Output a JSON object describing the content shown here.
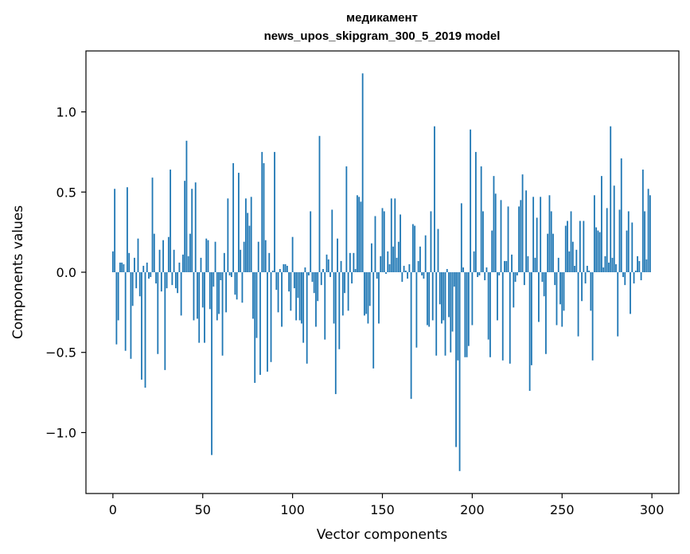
{
  "chart_data": {
    "type": "bar",
    "title_lines": [
      "медикамент",
      "news_upos_skipgram_300_5_2019 model"
    ],
    "xlabel": "Vector components",
    "ylabel": "Components values",
    "xlim": [
      -15,
      315
    ],
    "ylim": [
      -1.38,
      1.38
    ],
    "xticks": [
      0,
      50,
      100,
      150,
      200,
      250,
      300
    ],
    "yticks": [
      -1.0,
      -0.5,
      0.0,
      0.5,
      1.0
    ],
    "ytick_labels": [
      "−1.0",
      "−0.5",
      "0.0",
      "0.5",
      "1.0"
    ],
    "grid": false,
    "color": "#1f77b4",
    "values": [
      0.13,
      0.52,
      -0.45,
      -0.3,
      0.06,
      0.06,
      0.05,
      -0.49,
      0.53,
      0.12,
      -0.54,
      -0.21,
      0.09,
      -0.1,
      0.21,
      -0.15,
      -0.67,
      0.04,
      -0.72,
      0.06,
      -0.04,
      -0.03,
      0.59,
      0.24,
      -0.07,
      -0.51,
      0.14,
      -0.12,
      0.2,
      -0.61,
      -0.1,
      0.22,
      0.64,
      -0.08,
      0.14,
      -0.1,
      -0.13,
      0.06,
      -0.27,
      0.11,
      0.57,
      0.82,
      0.1,
      0.24,
      0.52,
      -0.3,
      0.56,
      -0.29,
      -0.44,
      0.09,
      -0.22,
      -0.44,
      0.21,
      0.2,
      -0.23,
      -1.14,
      -0.09,
      0.19,
      -0.3,
      -0.26,
      -0.05,
      -0.52,
      0.12,
      -0.25,
      0.46,
      -0.02,
      -0.03,
      0.68,
      -0.14,
      -0.17,
      0.62,
      0.14,
      -0.19,
      0.19,
      0.46,
      0.37,
      0.29,
      0.47,
      -0.29,
      -0.69,
      -0.41,
      0.19,
      -0.64,
      0.75,
      0.68,
      0.2,
      -0.62,
      0.12,
      -0.56,
      0.01,
      0.75,
      -0.11,
      -0.25,
      0.02,
      -0.34,
      0.05,
      0.05,
      0.04,
      -0.12,
      -0.24,
      0.22,
      -0.1,
      -0.3,
      -0.16,
      -0.3,
      -0.32,
      -0.44,
      0.03,
      -0.57,
      -0.02,
      0.38,
      -0.06,
      -0.13,
      -0.34,
      -0.18,
      0.85,
      -0.08,
      0.02,
      -0.42,
      0.11,
      0.08,
      -0.03,
      0.39,
      -0.32,
      -0.76,
      0.21,
      -0.48,
      0.07,
      -0.27,
      -0.13,
      0.66,
      -0.24,
      0.12,
      -0.07,
      0.12,
      0.02,
      0.48,
      0.47,
      0.44,
      1.24,
      -0.27,
      -0.26,
      -0.32,
      -0.21,
      0.18,
      -0.6,
      0.35,
      -0.04,
      -0.32,
      0.1,
      0.4,
      0.38,
      -0.01,
      0.13,
      0.05,
      0.46,
      0.16,
      0.46,
      0.09,
      0.19,
      0.36,
      -0.06,
      0.04,
      0.01,
      -0.04,
      0.05,
      -0.79,
      0.3,
      0.29,
      -0.47,
      0.07,
      0.16,
      -0.02,
      -0.04,
      0.23,
      -0.33,
      -0.34,
      0.38,
      -0.3,
      0.91,
      -0.52,
      0.27,
      -0.2,
      -0.32,
      -0.3,
      -0.52,
      0.02,
      -0.28,
      -0.5,
      -0.37,
      -0.09,
      -1.09,
      -0.55,
      -1.24,
      0.43,
      0.03,
      -0.53,
      -0.53,
      -0.46,
      0.89,
      -0.33,
      0.13,
      0.75,
      -0.03,
      -0.02,
      0.66,
      0.38,
      -0.05,
      0.03,
      -0.42,
      -0.53,
      0.26,
      0.6,
      0.49,
      -0.3,
      -0.02,
      0.45,
      -0.55,
      0.07,
      0.07,
      0.41,
      -0.57,
      0.11,
      -0.22,
      -0.06,
      -0.02,
      0.41,
      0.45,
      0.61,
      -0.08,
      0.51,
      0.1,
      -0.74,
      -0.58,
      0.47,
      0.09,
      0.34,
      -0.31,
      0.47,
      -0.06,
      -0.15,
      -0.51,
      0.24,
      0.48,
      0.38,
      0.24,
      -0.08,
      -0.33,
      0.09,
      -0.2,
      -0.34,
      -0.24,
      0.29,
      0.32,
      0.13,
      0.38,
      0.19,
      0.04,
      0.14,
      -0.4,
      0.32,
      -0.18,
      0.32,
      -0.07,
      0.04,
      0.01,
      -0.24,
      -0.55,
      0.48,
      0.28,
      0.26,
      0.25,
      0.6,
      0.03,
      0.1,
      0.4,
      0.06,
      0.91,
      0.09,
      0.54,
      0.05,
      -0.4,
      0.39,
      0.71,
      -0.03,
      -0.08,
      0.26,
      0.38,
      -0.26,
      0.31,
      -0.07,
      0.01,
      0.1,
      0.07,
      -0.05,
      0.64,
      0.38,
      0.08,
      0.52,
      0.48
    ]
  }
}
